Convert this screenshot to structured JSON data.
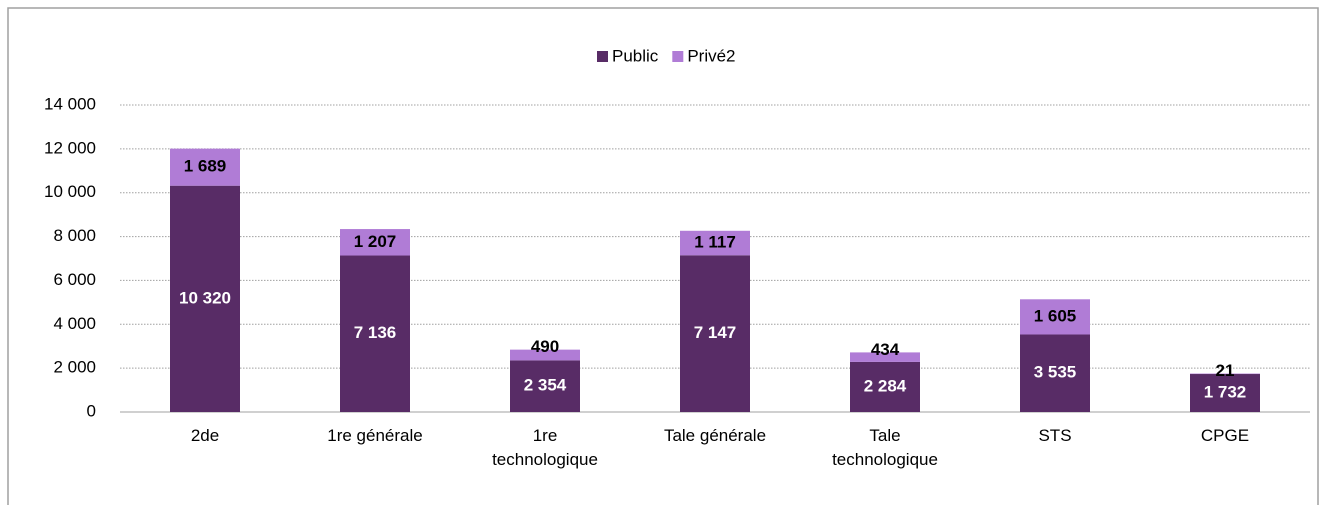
{
  "chart_data": {
    "type": "stacked_bar",
    "categories": [
      "2de",
      "1re générale",
      "1re technologique",
      "Tale générale",
      "Tale technologique",
      "STS",
      "CPGE"
    ],
    "series": [
      {
        "name": "Public",
        "color": "#582c66",
        "label_color": "#ffffff",
        "values": [
          10320,
          7136,
          2354,
          7147,
          2284,
          3535,
          1732
        ],
        "value_labels": [
          "10 320",
          "7 136",
          "2 354",
          "7 147",
          "2 284",
          "3 535",
          "1 732"
        ]
      },
      {
        "name": "Privé2",
        "color": "#b07cd6",
        "label_color": "#000000",
        "values": [
          1689,
          1207,
          490,
          1117,
          434,
          1605,
          21
        ],
        "value_labels": [
          "1 689",
          "1 207",
          "490",
          "1 117",
          "434",
          "1 605",
          "21"
        ]
      }
    ],
    "ylim": [
      0,
      14000
    ],
    "yticks": [
      0,
      {
        "value": 2000,
        "label": "2 000"
      },
      {
        "value": 4000,
        "label": "4 000"
      },
      {
        "value": 6000,
        "label": "6 000"
      },
      {
        "value": 8000,
        "label": "8 000"
      },
      {
        "value": 10000,
        "label": "10 000"
      },
      {
        "value": 12000,
        "label": "12 000"
      },
      {
        "value": 14000,
        "label": "14 000"
      }
    ],
    "grid": true,
    "legend": "top"
  }
}
